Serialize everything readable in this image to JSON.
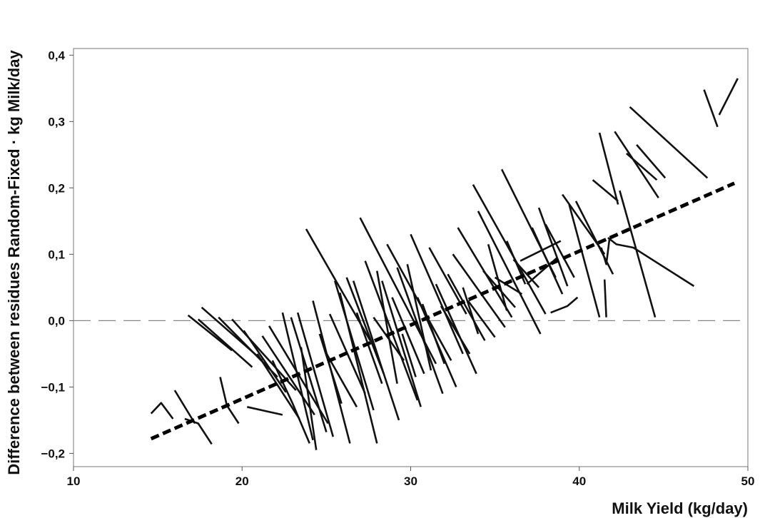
{
  "chart_data": {
    "type": "line",
    "title": "",
    "xlabel": "Milk Yield (kg/day)",
    "ylabel": "Difference between residues Random-Fixed · kg Milk/day",
    "xlim": [
      10,
      50
    ],
    "ylim": [
      -0.22,
      0.41
    ],
    "xticks": [
      {
        "value": 10,
        "label": "10"
      },
      {
        "value": 20,
        "label": "20"
      },
      {
        "value": 30,
        "label": "30"
      },
      {
        "value": 40,
        "label": "40"
      },
      {
        "value": 50,
        "label": "50"
      }
    ],
    "yticks": [
      {
        "value": -0.2,
        "label": "−0,2"
      },
      {
        "value": -0.1,
        "label": "−0,1"
      },
      {
        "value": 0.0,
        "label": "0,0"
      },
      {
        "value": 0.1,
        "label": "0,1"
      },
      {
        "value": 0.2,
        "label": "0,2"
      },
      {
        "value": 0.3,
        "label": "0,3"
      },
      {
        "value": 0.4,
        "label": "0,4"
      }
    ],
    "zero_reference_line": {
      "y": 0.0,
      "style": "dashed",
      "color": "#888888"
    },
    "trend_line": {
      "style": "thick dashed",
      "color": "#000000",
      "points": [
        [
          14.6,
          -0.178
        ],
        [
          49.2,
          0.207
        ]
      ]
    },
    "series_color": "#111111",
    "segments": [
      [
        [
          14.6,
          -0.14
        ],
        [
          15.2,
          -0.124
        ],
        [
          15.9,
          -0.148
        ]
      ],
      [
        [
          16.0,
          -0.105
        ],
        [
          17.2,
          -0.155
        ]
      ],
      [
        [
          16.6,
          -0.148
        ],
        [
          17.4,
          -0.155
        ],
        [
          18.2,
          -0.186
        ]
      ],
      [
        [
          18.7,
          -0.085
        ],
        [
          19.1,
          -0.128
        ],
        [
          19.8,
          -0.155
        ]
      ],
      [
        [
          16.8,
          0.008
        ],
        [
          19.4,
          -0.045
        ]
      ],
      [
        [
          17.4,
          0.002
        ],
        [
          20.6,
          -0.07
        ]
      ],
      [
        [
          17.6,
          0.02
        ],
        [
          21.2,
          -0.06
        ]
      ],
      [
        [
          18.6,
          0.005
        ],
        [
          22.1,
          -0.085
        ]
      ],
      [
        [
          19.4,
          0.002
        ],
        [
          23.2,
          -0.105
        ]
      ],
      [
        [
          20.1,
          -0.015
        ],
        [
          22.6,
          -0.108
        ]
      ],
      [
        [
          20.3,
          -0.13
        ],
        [
          22.4,
          -0.142
        ]
      ],
      [
        [
          20.9,
          -0.05
        ],
        [
          23.4,
          -0.148
        ]
      ],
      [
        [
          21.2,
          -0.023
        ],
        [
          24.3,
          -0.142
        ]
      ],
      [
        [
          21.6,
          -0.008
        ],
        [
          25.1,
          -0.155
        ]
      ],
      [
        [
          21.8,
          -0.06
        ],
        [
          23.0,
          -0.125
        ],
        [
          24.0,
          -0.185
        ]
      ],
      [
        [
          22.4,
          0.012
        ],
        [
          24.2,
          -0.18
        ]
      ],
      [
        [
          22.9,
          0.005
        ],
        [
          25.0,
          -0.168
        ]
      ],
      [
        [
          23.3,
          0.012
        ],
        [
          25.4,
          -0.175
        ]
      ],
      [
        [
          23.5,
          -0.04
        ],
        [
          24.4,
          -0.195
        ]
      ],
      [
        [
          23.8,
          0.138
        ],
        [
          27.6,
          -0.03
        ]
      ],
      [
        [
          24.2,
          0.03
        ],
        [
          26.4,
          -0.185
        ]
      ],
      [
        [
          24.6,
          -0.02
        ],
        [
          25.9,
          -0.125
        ]
      ],
      [
        [
          24.9,
          -0.045
        ],
        [
          26.8,
          -0.13
        ]
      ],
      [
        [
          25.2,
          0.01
        ],
        [
          27.3,
          -0.11
        ]
      ],
      [
        [
          25.5,
          0.06
        ],
        [
          27.8,
          -0.135
        ]
      ],
      [
        [
          25.8,
          0.042
        ],
        [
          28.0,
          -0.185
        ]
      ],
      [
        [
          26.2,
          0.065
        ],
        [
          28.4,
          -0.08
        ]
      ],
      [
        [
          26.6,
          0.06
        ],
        [
          29.3,
          -0.15
        ]
      ],
      [
        [
          26.8,
          0.012
        ],
        [
          28.3,
          -0.095
        ]
      ],
      [
        [
          27.0,
          0.155
        ],
        [
          31.5,
          -0.065
        ]
      ],
      [
        [
          27.3,
          0.09
        ],
        [
          30.4,
          -0.12
        ]
      ],
      [
        [
          27.8,
          0.005
        ],
        [
          29.6,
          -0.06
        ]
      ],
      [
        [
          28.0,
          0.075
        ],
        [
          29.2,
          -0.095
        ]
      ],
      [
        [
          28.3,
          0.06
        ],
        [
          30.6,
          -0.13
        ]
      ],
      [
        [
          28.6,
          0.115
        ],
        [
          32.4,
          -0.06
        ]
      ],
      [
        [
          28.9,
          0.035
        ],
        [
          30.8,
          -0.08
        ]
      ],
      [
        [
          29.2,
          0.08
        ],
        [
          31.9,
          -0.11
        ]
      ],
      [
        [
          29.5,
          -0.02
        ],
        [
          30.3,
          -0.085
        ]
      ],
      [
        [
          29.8,
          0.085
        ],
        [
          31.2,
          -0.075
        ]
      ],
      [
        [
          30.0,
          0.13
        ],
        [
          33.1,
          -0.05
        ]
      ],
      [
        [
          30.4,
          0.035
        ],
        [
          32.7,
          -0.1
        ]
      ],
      [
        [
          30.7,
          0.025
        ],
        [
          32.0,
          -0.065
        ]
      ],
      [
        [
          31.1,
          0.11
        ],
        [
          33.3,
          0.01
        ]
      ],
      [
        [
          31.5,
          0.055
        ],
        [
          33.9,
          -0.08
        ]
      ],
      [
        [
          31.8,
          0.022
        ],
        [
          33.5,
          -0.05
        ]
      ],
      [
        [
          32.2,
          0.07
        ],
        [
          34.4,
          -0.03
        ]
      ],
      [
        [
          32.5,
          0.1
        ],
        [
          35.6,
          -0.01
        ]
      ],
      [
        [
          32.8,
          0.14
        ],
        [
          36.0,
          0.005
        ]
      ],
      [
        [
          33.1,
          0.05
        ],
        [
          34.0,
          -0.02
        ]
      ],
      [
        [
          33.4,
          0.03
        ],
        [
          35.0,
          -0.025
        ]
      ],
      [
        [
          33.7,
          0.205
        ],
        [
          38.0,
          0.01
        ]
      ],
      [
        [
          34.0,
          0.165
        ],
        [
          37.7,
          -0.02
        ]
      ],
      [
        [
          34.3,
          0.075
        ],
        [
          36.2,
          0.02
        ]
      ],
      [
        [
          34.6,
          0.115
        ],
        [
          35.7,
          0.015
        ]
      ],
      [
        [
          35.0,
          0.065
        ],
        [
          36.6,
          0.04
        ]
      ],
      [
        [
          35.4,
          0.228
        ],
        [
          38.6,
          0.065
        ]
      ],
      [
        [
          35.7,
          0.12
        ],
        [
          36.8,
          0.055
        ]
      ],
      [
        [
          36.1,
          0.092
        ],
        [
          37.6,
          0.05
        ]
      ],
      [
        [
          36.5,
          0.09
        ],
        [
          38.9,
          0.12
        ]
      ],
      [
        [
          36.9,
          0.055
        ],
        [
          38.7,
          0.095
        ]
      ],
      [
        [
          37.2,
          0.14
        ],
        [
          39.0,
          0.04
        ]
      ],
      [
        [
          37.6,
          0.17
        ],
        [
          39.3,
          0.052
        ]
      ],
      [
        [
          38.0,
          0.145
        ],
        [
          39.7,
          0.065
        ]
      ],
      [
        [
          38.3,
          0.012
        ],
        [
          39.3,
          0.022
        ],
        [
          39.9,
          0.035
        ]
      ],
      [
        [
          39.0,
          0.19
        ],
        [
          41.5,
          0.1
        ]
      ],
      [
        [
          39.4,
          0.175
        ],
        [
          41.2,
          0.005
        ]
      ],
      [
        [
          39.8,
          0.18
        ],
        [
          42.0,
          0.07
        ]
      ],
      [
        [
          40.8,
          0.212
        ],
        [
          42.3,
          0.18
        ]
      ],
      [
        [
          41.3,
          0.11
        ],
        [
          41.6,
          0.085
        ],
        [
          41.8,
          0.125
        ]
      ],
      [
        [
          41.5,
          0.062
        ],
        [
          41.6,
          0.005
        ]
      ],
      [
        [
          41.7,
          0.125
        ],
        [
          42.2,
          0.115
        ],
        [
          43.2,
          0.11
        ],
        [
          46.8,
          0.052
        ]
      ],
      [
        [
          41.2,
          0.283
        ],
        [
          42.3,
          0.175
        ]
      ],
      [
        [
          42.1,
          0.285
        ],
        [
          44.7,
          0.185
        ]
      ],
      [
        [
          42.4,
          0.196
        ],
        [
          44.5,
          0.005
        ]
      ],
      [
        [
          42.8,
          0.252
        ],
        [
          44.6,
          0.212
        ]
      ],
      [
        [
          43.0,
          0.322
        ],
        [
          47.6,
          0.215
        ]
      ],
      [
        [
          43.4,
          0.265
        ],
        [
          45.1,
          0.215
        ]
      ],
      [
        [
          47.4,
          0.348
        ],
        [
          48.2,
          0.292
        ]
      ],
      [
        [
          48.3,
          0.31
        ],
        [
          49.4,
          0.365
        ]
      ]
    ]
  }
}
